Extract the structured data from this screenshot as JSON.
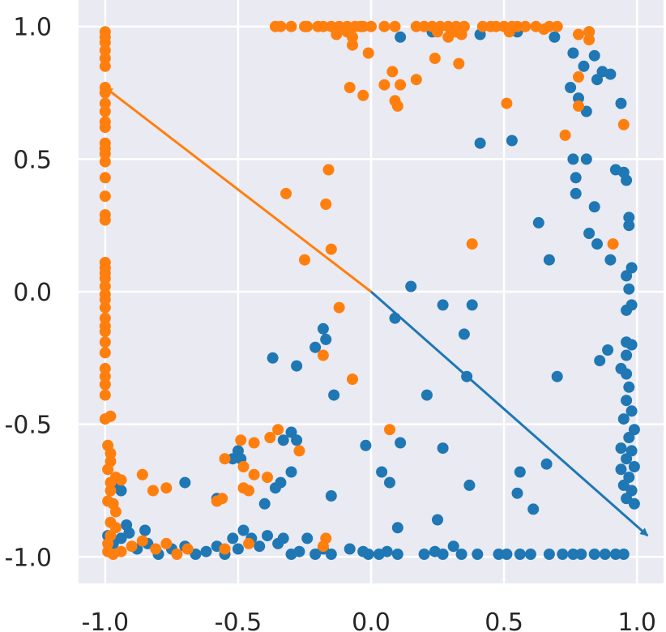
{
  "chart_data": {
    "type": "scatter",
    "xlim": [
      -1.1,
      1.1
    ],
    "ylim": [
      -1.1,
      1.1
    ],
    "grid": true,
    "background": "#EAEAF2",
    "x_ticks": [
      "-1.0",
      "-0.5",
      "0.0",
      "0.5",
      "1.0"
    ],
    "y_ticks": [
      "1.0",
      "0.5",
      "0.0",
      "-0.5",
      "-1.0"
    ],
    "arrows": [
      {
        "from": [
          0,
          0
        ],
        "to": [
          -1.0,
          0.77
        ],
        "color": "#FF7F0E"
      },
      {
        "from": [
          0,
          0
        ],
        "to": [
          1.04,
          -0.92
        ],
        "color": "#1F77B4"
      }
    ],
    "series": [
      {
        "color": "#1F77B4",
        "points": [
          [
            0.11,
            0.96
          ],
          [
            0.23,
            0.98
          ],
          [
            0.41,
            0.97
          ],
          [
            0.55,
            0.98
          ],
          [
            0.69,
            0.96
          ],
          [
            0.82,
            0.98
          ],
          [
            0.76,
            0.9
          ],
          [
            0.8,
            0.85
          ],
          [
            0.84,
            0.89
          ],
          [
            0.87,
            0.83
          ],
          [
            0.9,
            0.82
          ],
          [
            0.85,
            0.8
          ],
          [
            0.75,
            0.77
          ],
          [
            0.78,
            0.73
          ],
          [
            0.81,
            0.68
          ],
          [
            0.94,
            0.71
          ],
          [
            0.41,
            0.56
          ],
          [
            0.53,
            0.57
          ],
          [
            0.76,
            0.5
          ],
          [
            0.81,
            0.5
          ],
          [
            0.77,
            0.43
          ],
          [
            0.92,
            0.46
          ],
          [
            0.95,
            0.45
          ],
          [
            0.96,
            0.42
          ],
          [
            0.77,
            0.37
          ],
          [
            0.84,
            0.32
          ],
          [
            0.63,
            0.26
          ],
          [
            0.97,
            0.28
          ],
          [
            0.97,
            0.25
          ],
          [
            0.82,
            0.22
          ],
          [
            0.85,
            0.18
          ],
          [
            0.67,
            0.12
          ],
          [
            0.9,
            0.12
          ],
          [
            0.98,
            0.09
          ],
          [
            0.96,
            0.06
          ],
          [
            0.97,
            0.01
          ],
          [
            0.98,
            -0.05
          ],
          [
            0.96,
            -0.07
          ],
          [
            0.15,
            0.02
          ],
          [
            0.27,
            -0.05
          ],
          [
            0.38,
            -0.05
          ],
          [
            0.09,
            -0.1
          ],
          [
            0.35,
            -0.16
          ],
          [
            0.96,
            -0.19
          ],
          [
            0.98,
            -0.2
          ],
          [
            0.89,
            -0.22
          ],
          [
            0.96,
            -0.24
          ],
          [
            0.86,
            -0.26
          ],
          [
            0.94,
            -0.29
          ],
          [
            0.96,
            -0.31
          ],
          [
            0.7,
            -0.32
          ],
          [
            0.36,
            -0.32
          ],
          [
            0.97,
            -0.36
          ],
          [
            0.21,
            -0.39
          ],
          [
            0.96,
            -0.41
          ],
          [
            0.98,
            -0.45
          ],
          [
            0.95,
            -0.48
          ],
          [
            0.99,
            -0.52
          ],
          [
            0.97,
            -0.55
          ],
          [
            0.94,
            -0.59
          ],
          [
            0.98,
            -0.6
          ],
          [
            0.96,
            -0.63
          ],
          [
            0.94,
            -0.67
          ],
          [
            0.99,
            -0.66
          ],
          [
            0.97,
            -0.7
          ],
          [
            0.95,
            -0.73
          ],
          [
            0.98,
            -0.75
          ],
          [
            0.96,
            -0.78
          ],
          [
            0.99,
            -0.8
          ],
          [
            -0.37,
            -0.25
          ],
          [
            -0.28,
            -0.28
          ],
          [
            -0.21,
            -0.21
          ],
          [
            -0.18,
            -0.14
          ],
          [
            -0.17,
            -0.18
          ],
          [
            -0.14,
            -0.39
          ],
          [
            -0.3,
            -0.53
          ],
          [
            -0.33,
            -0.56
          ],
          [
            -0.28,
            -0.56
          ],
          [
            -0.02,
            -0.58
          ],
          [
            0.11,
            -0.57
          ],
          [
            0.27,
            -0.59
          ],
          [
            -0.5,
            -0.6
          ],
          [
            -0.52,
            -0.63
          ],
          [
            -0.49,
            -0.63
          ],
          [
            -0.3,
            -0.68
          ],
          [
            -0.34,
            -0.72
          ],
          [
            0.04,
            -0.68
          ],
          [
            0.07,
            -0.72
          ],
          [
            0.56,
            -0.68
          ],
          [
            0.66,
            -0.65
          ],
          [
            -0.36,
            -0.74
          ],
          [
            -0.15,
            -0.77
          ],
          [
            0.55,
            -0.76
          ],
          [
            0.37,
            -0.73
          ],
          [
            0.1,
            -0.89
          ],
          [
            -0.58,
            -0.78
          ],
          [
            -0.4,
            -0.8
          ],
          [
            0.61,
            -0.82
          ],
          [
            0.25,
            -0.86
          ],
          [
            -0.99,
            -0.92
          ],
          [
            -0.97,
            -0.95
          ],
          [
            -0.94,
            -0.93
          ],
          [
            -0.91,
            -0.91
          ],
          [
            -0.88,
            -0.97
          ],
          [
            -0.84,
            -0.95
          ],
          [
            -0.8,
            -0.99
          ],
          [
            -0.75,
            -0.97
          ],
          [
            -0.7,
            -0.96
          ],
          [
            -0.66,
            -0.99
          ],
          [
            -0.62,
            -0.98
          ],
          [
            -0.58,
            -0.96
          ],
          [
            -0.55,
            -0.99
          ],
          [
            -0.52,
            -0.93
          ],
          [
            -0.5,
            -0.97
          ],
          [
            -0.48,
            -0.9
          ],
          [
            -0.45,
            -0.93
          ],
          [
            -0.42,
            -0.96
          ],
          [
            -0.39,
            -0.92
          ],
          [
            -0.35,
            -0.95
          ],
          [
            -0.33,
            -0.93
          ],
          [
            -0.3,
            -0.99
          ],
          [
            -0.27,
            -0.98
          ],
          [
            -0.24,
            -0.93
          ],
          [
            -0.21,
            -0.99
          ],
          [
            -0.18,
            -0.97
          ],
          [
            -0.15,
            -0.99
          ],
          [
            -0.08,
            -0.97
          ],
          [
            -0.03,
            -0.98
          ],
          [
            -0.01,
            -0.99
          ],
          [
            0.03,
            -0.99
          ],
          [
            0.06,
            -0.98
          ],
          [
            0.1,
            -0.99
          ],
          [
            0.2,
            -0.99
          ],
          [
            0.24,
            -0.98
          ],
          [
            0.27,
            -0.99
          ],
          [
            0.31,
            -0.96
          ],
          [
            0.34,
            -0.99
          ],
          [
            0.4,
            -0.99
          ],
          [
            0.48,
            -0.99
          ],
          [
            0.51,
            -0.99
          ],
          [
            0.56,
            -0.99
          ],
          [
            0.6,
            -0.99
          ],
          [
            0.67,
            -0.99
          ],
          [
            0.72,
            -0.99
          ],
          [
            0.76,
            -0.99
          ],
          [
            0.79,
            -0.99
          ],
          [
            0.84,
            -0.99
          ],
          [
            0.88,
            -0.99
          ],
          [
            0.92,
            -0.99
          ],
          [
            0.95,
            -0.99
          ],
          [
            -0.96,
            -0.72
          ],
          [
            -0.94,
            -0.75
          ],
          [
            -0.92,
            -0.88
          ],
          [
            -0.85,
            -0.9
          ],
          [
            -0.7,
            -0.72
          ]
        ]
      },
      {
        "color": "#FF7F0E",
        "points": [
          [
            -1.0,
            0.98
          ],
          [
            -1.0,
            0.96
          ],
          [
            -1.0,
            0.94
          ],
          [
            -1.0,
            0.91
          ],
          [
            -1.0,
            0.88
          ],
          [
            -1.0,
            0.85
          ],
          [
            -1.0,
            0.77
          ],
          [
            -1.0,
            0.75
          ],
          [
            -1.0,
            0.71
          ],
          [
            -1.0,
            0.68
          ],
          [
            -1.0,
            0.64
          ],
          [
            -1.0,
            0.62
          ],
          [
            -1.0,
            0.56
          ],
          [
            -1.0,
            0.54
          ],
          [
            -1.0,
            0.52
          ],
          [
            -1.0,
            0.49
          ],
          [
            -1.0,
            0.43
          ],
          [
            -1.0,
            0.36
          ],
          [
            -1.0,
            0.29
          ],
          [
            -1.0,
            0.27
          ],
          [
            -1.0,
            0.11
          ],
          [
            -1.0,
            0.09
          ],
          [
            -1.0,
            0.07
          ],
          [
            -1.0,
            0.05
          ],
          [
            -1.0,
            0.02
          ],
          [
            -1.0,
            -0.01
          ],
          [
            -1.0,
            -0.03
          ],
          [
            -1.0,
            -0.06
          ],
          [
            -1.0,
            -0.1
          ],
          [
            -1.0,
            -0.13
          ],
          [
            -1.0,
            -0.15
          ],
          [
            -1.0,
            -0.19
          ],
          [
            -1.0,
            -0.23
          ],
          [
            -1.0,
            -0.29
          ],
          [
            -1.0,
            -0.32
          ],
          [
            -1.0,
            -0.35
          ],
          [
            -1.0,
            -0.39
          ],
          [
            -1.0,
            -0.48
          ],
          [
            -0.98,
            -0.47
          ],
          [
            -0.99,
            -0.58
          ],
          [
            -0.98,
            -0.61
          ],
          [
            -0.98,
            -0.64
          ],
          [
            -0.99,
            -0.67
          ],
          [
            -0.98,
            -0.72
          ],
          [
            -0.98,
            -0.75
          ],
          [
            -0.99,
            -0.79
          ],
          [
            -0.97,
            -0.8
          ],
          [
            -0.96,
            -0.83
          ],
          [
            -0.98,
            -0.87
          ],
          [
            -0.96,
            -0.89
          ],
          [
            -0.98,
            -0.92
          ],
          [
            -0.99,
            -0.95
          ],
          [
            -0.99,
            -0.98
          ],
          [
            -0.97,
            -0.99
          ],
          [
            -0.94,
            -0.98
          ],
          [
            -0.9,
            -0.96
          ],
          [
            -0.86,
            -0.94
          ],
          [
            -0.81,
            -0.97
          ],
          [
            -0.77,
            -0.95
          ],
          [
            -0.73,
            -0.99
          ],
          [
            -0.69,
            -0.97
          ],
          [
            -0.96,
            -0.7
          ],
          [
            -0.94,
            -0.71
          ],
          [
            -0.86,
            -0.69
          ],
          [
            -0.82,
            -0.75
          ],
          [
            -0.77,
            -0.74
          ],
          [
            -0.58,
            -0.79
          ],
          [
            -0.56,
            -0.78
          ],
          [
            -0.55,
            -0.63
          ],
          [
            -0.49,
            -0.56
          ],
          [
            -0.44,
            -0.57
          ],
          [
            -0.38,
            -0.55
          ],
          [
            -0.35,
            -0.52
          ],
          [
            -0.27,
            -0.6
          ],
          [
            -0.48,
            -0.66
          ],
          [
            -0.44,
            -0.69
          ],
          [
            -0.48,
            -0.74
          ],
          [
            -0.46,
            -0.75
          ],
          [
            -0.39,
            -0.7
          ],
          [
            -0.55,
            -0.97
          ],
          [
            -0.46,
            -0.95
          ],
          [
            -0.18,
            -0.96
          ],
          [
            -0.17,
            -0.93
          ],
          [
            -0.32,
            0.37
          ],
          [
            -0.25,
            0.12
          ],
          [
            -0.15,
            0.16
          ],
          [
            -0.17,
            0.33
          ],
          [
            -0.16,
            0.46
          ],
          [
            -0.12,
            -0.06
          ],
          [
            -0.07,
            -0.33
          ],
          [
            -0.18,
            -0.24
          ],
          [
            0.07,
            -0.52
          ],
          [
            0.38,
            0.18
          ],
          [
            0.17,
            0.8
          ],
          [
            0.11,
            0.78
          ],
          [
            0.1,
            0.7
          ],
          [
            0.08,
            0.83
          ],
          [
            0.05,
            0.78
          ],
          [
            -0.08,
            0.77
          ],
          [
            -0.03,
            0.74
          ],
          [
            -0.07,
            0.93
          ],
          [
            -0.01,
            0.9
          ],
          [
            0.09,
            0.72
          ],
          [
            0.24,
            0.88
          ],
          [
            0.33,
            0.86
          ],
          [
            0.51,
            0.71
          ],
          [
            0.73,
            0.59
          ],
          [
            0.78,
            0.81
          ],
          [
            0.78,
            0.7
          ],
          [
            0.91,
            0.18
          ],
          [
            0.95,
            0.63
          ],
          [
            0.82,
            0.98
          ],
          [
            0.78,
            0.97
          ],
          [
            0.82,
            0.95
          ],
          [
            -0.36,
            1.0
          ],
          [
            -0.34,
            1.0
          ],
          [
            -0.3,
            1.0
          ],
          [
            -0.25,
            1.0
          ],
          [
            -0.24,
            1.0
          ],
          [
            -0.2,
            1.0
          ],
          [
            -0.18,
            1.0
          ],
          [
            -0.15,
            1.0
          ],
          [
            -0.12,
            1.0
          ],
          [
            -0.09,
            1.0
          ],
          [
            -0.06,
            1.0
          ],
          [
            -0.04,
            1.0
          ],
          [
            -0.03,
            1.0
          ],
          [
            0.0,
            1.0
          ],
          [
            0.05,
            1.0
          ],
          [
            0.09,
            1.0
          ],
          [
            0.17,
            1.0
          ],
          [
            0.2,
            1.0
          ],
          [
            0.23,
            1.0
          ],
          [
            0.26,
            1.0
          ],
          [
            0.29,
            1.0
          ],
          [
            0.32,
            1.0
          ],
          [
            0.35,
            1.0
          ],
          [
            0.42,
            1.0
          ],
          [
            0.45,
            1.0
          ],
          [
            0.47,
            1.0
          ],
          [
            0.5,
            1.0
          ],
          [
            0.53,
            1.0
          ],
          [
            0.55,
            1.0
          ],
          [
            0.58,
            1.0
          ],
          [
            0.62,
            1.0
          ],
          [
            0.67,
            1.0
          ],
          [
            0.7,
            1.0
          ],
          [
            0.25,
            0.98
          ],
          [
            0.29,
            0.96
          ],
          [
            0.32,
            0.98
          ],
          [
            0.34,
            0.97
          ],
          [
            -0.13,
            0.97
          ],
          [
            -0.09,
            0.98
          ],
          [
            -0.07,
            0.96
          ],
          [
            0.52,
            0.98
          ],
          [
            0.65,
            0.99
          ]
        ]
      }
    ]
  }
}
